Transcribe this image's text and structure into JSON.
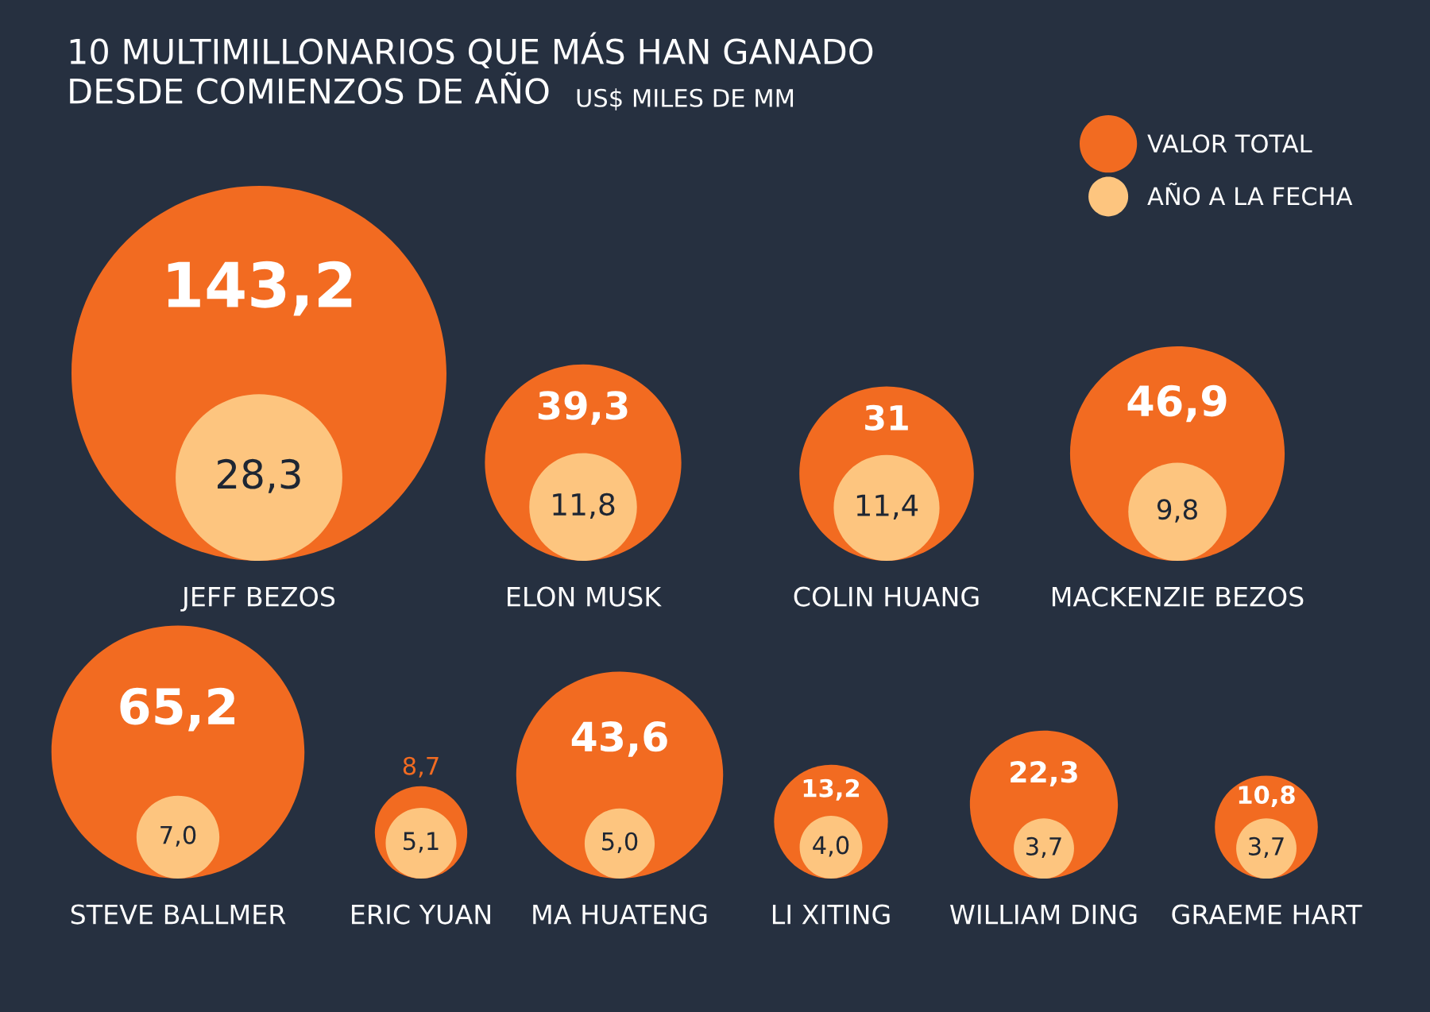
{
  "chart_data": {
    "type": "other",
    "title": "10 MULTIMILLONARIOS QUE MÁS HAN GANADO\nDESDE COMIENZOS DE AÑO",
    "subtitle": "US$ MILES DE MM",
    "categories": [
      "JEFF BEZOS",
      "ELON MUSK",
      "COLIN HUANG",
      "MACKENZIE BEZOS",
      "STEVE BALLMER",
      "ERIC YUAN",
      "MA HUATENG",
      "LI XITING",
      "WILLIAM DING",
      "GRAEME HART"
    ],
    "series": [
      {
        "name": "VALOR TOTAL",
        "color": "#f26b21",
        "values": [
          143.2,
          39.3,
          31,
          46.9,
          65.2,
          8.7,
          43.6,
          13.2,
          22.3,
          10.8
        ],
        "value_labels": [
          "143,2",
          "39,3",
          "31",
          "46,9",
          "65,2",
          "8,7",
          "43,6",
          "13,2",
          "22,3",
          "10,8"
        ]
      },
      {
        "name": "AÑO A LA FECHA",
        "color": "#fdc57f",
        "values": [
          28.3,
          11.8,
          11.4,
          9.8,
          7.0,
          5.1,
          5.0,
          4.0,
          3.7,
          3.7
        ],
        "value_labels": [
          "28,3",
          "11,8",
          "11,4",
          "9,8",
          "7,0",
          "5,1",
          "5,0",
          "4,0",
          "3,7",
          "3,7"
        ]
      }
    ],
    "legend": "top right"
  }
}
